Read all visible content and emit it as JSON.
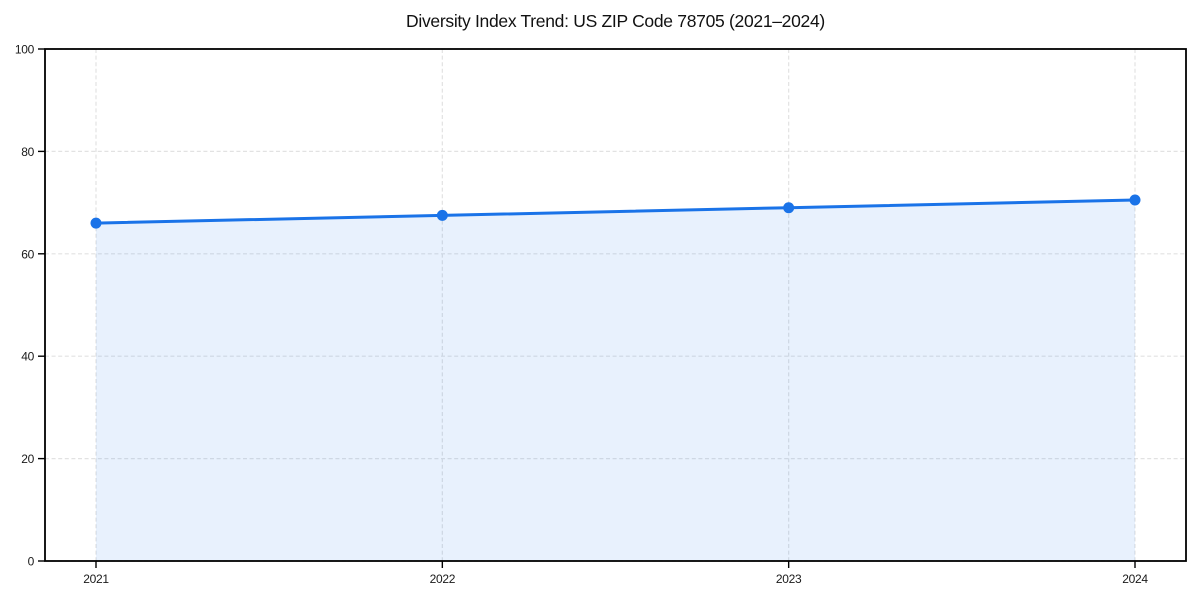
{
  "figure": {
    "title": "Diversity Index Trend: US ZIP Code 78705 (2021–2024)"
  },
  "chart_data": {
    "type": "area",
    "title": "Diversity Index Trend: US ZIP Code 78705 (2021–2024)",
    "categories": [
      "2021",
      "2022",
      "2023",
      "2024"
    ],
    "series": [
      {
        "name": "Diversity Index",
        "values": [
          66.0,
          67.5,
          69.0,
          70.5
        ]
      }
    ],
    "xlabel": "",
    "ylabel": "",
    "ylim": [
      0,
      100
    ],
    "yticks": [
      0,
      20,
      40,
      60,
      80,
      100
    ],
    "grid": true,
    "grid_style": "dashed",
    "legend": false,
    "line_color": "#1a73e8",
    "marker_color": "#1a73e8",
    "fill_color": "rgba(26,115,232,0.10)",
    "grid_color": "#e2e2e2",
    "axis_color": "#000000",
    "text_color": "#1a1a1a"
  }
}
